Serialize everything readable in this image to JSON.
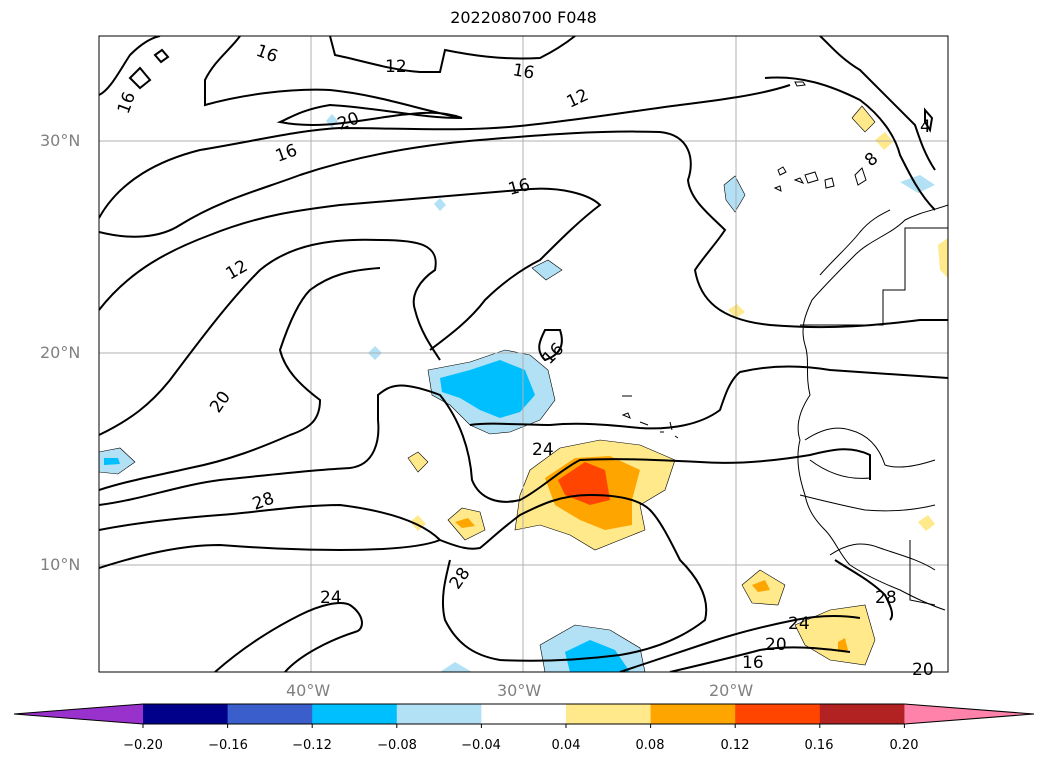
{
  "title": "2022080700 F048",
  "lat_labels": [
    "30°N",
    "20°N",
    "10°N"
  ],
  "lon_labels": [
    "40°W",
    "30°W",
    "20°W"
  ],
  "contour_labels": [
    "16",
    "12",
    "16",
    "16",
    "20",
    "12",
    "16",
    "16",
    "12",
    "20",
    "16",
    "24",
    "28",
    "28",
    "24",
    "24",
    "20",
    "16",
    "20",
    "28",
    "4",
    "8"
  ],
  "colorbar": {
    "ticks": [
      "−0.20",
      "−0.16",
      "−0.12",
      "−0.08",
      "−0.04",
      "0.04",
      "0.08",
      "0.12",
      "0.16",
      "0.20"
    ],
    "colors": [
      "#9932CC",
      "#00008B",
      "#3A5FCD",
      "#00BFFF",
      "#B2E0F5",
      "#FFFFFF",
      "#FFE98A",
      "#FFA500",
      "#FF4500",
      "#B22222",
      "#FF82AB"
    ]
  }
}
